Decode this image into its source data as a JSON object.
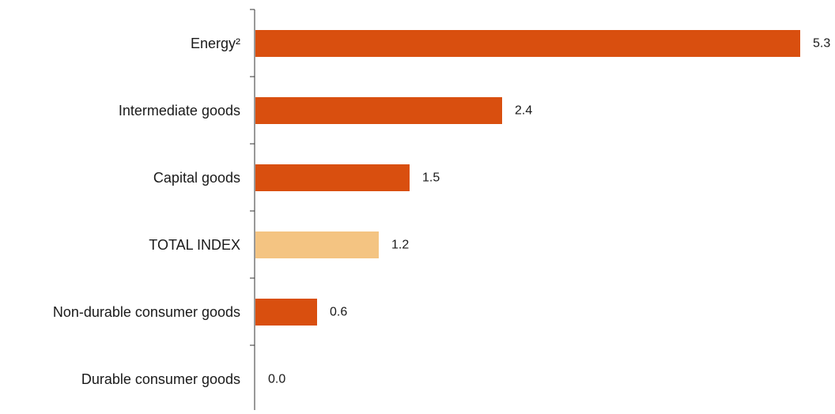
{
  "chart_data": {
    "type": "bar",
    "orientation": "horizontal",
    "categories": [
      "Energy²",
      "Intermediate goods",
      "Capital goods",
      "TOTAL INDEX",
      "Non-durable consumer goods",
      "Durable consumer goods"
    ],
    "values": [
      5.3,
      2.4,
      1.5,
      1.2,
      0.6,
      0.0
    ],
    "value_labels": [
      "5.3",
      "2.4",
      "1.5",
      "1.2",
      "0.6",
      "0.0"
    ],
    "highlight_index": 3,
    "xlim": [
      0,
      5.3
    ],
    "grid": false,
    "legend": "none",
    "colors": {
      "bar": "#d94f0f",
      "highlight": "#f4c482",
      "axis": "#333333"
    }
  }
}
